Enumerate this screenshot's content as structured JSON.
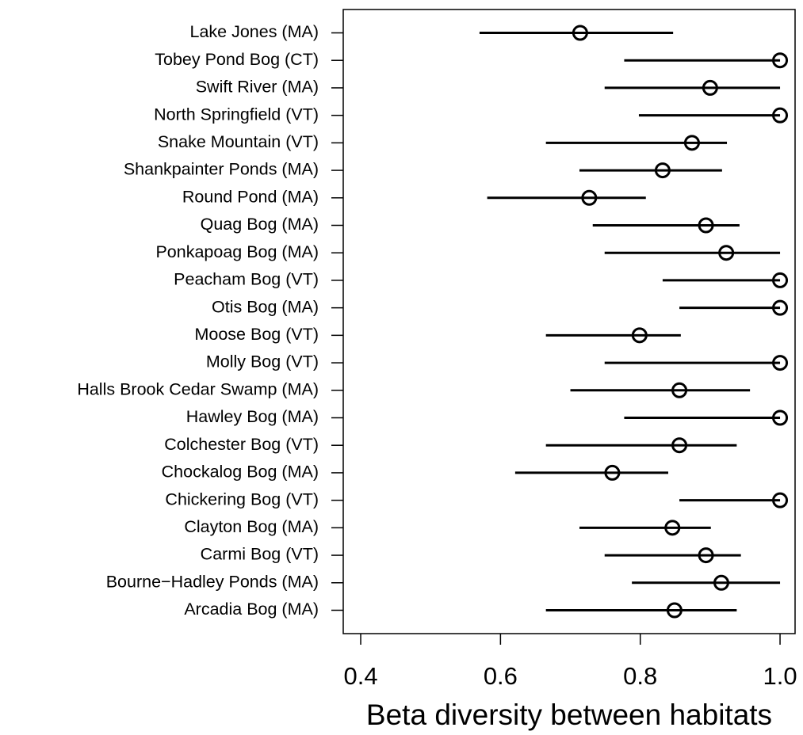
{
  "chart_data": {
    "type": "dotplot",
    "x_label": "Beta diversity between habitats",
    "categories": [
      "Lake Jones (MA)",
      "Tobey Pond Bog (CT)",
      "Swift River (MA)",
      "North Springfield (VT)",
      "Snake Mountain (VT)",
      "Shankpainter Ponds (MA)",
      "Round Pond (MA)",
      "Quag Bog (MA)",
      "Ponkapoag Bog (MA)",
      "Peacham Bog (VT)",
      "Otis Bog (MA)",
      "Moose Bog (VT)",
      "Molly Bog (VT)",
      "Halls Brook Cedar Swamp (MA)",
      "Hawley Bog (MA)",
      "Colchester Bog (VT)",
      "Chockalog Bog (MA)",
      "Chickering Bog (VT)",
      "Clayton Bog (MA)",
      "Carmi Bog (VT)",
      "Bourne−Hadley Ponds (MA)",
      "Arcadia Bog (MA)"
    ],
    "values": [
      0.714,
      1.0,
      0.9,
      1.0,
      0.874,
      0.832,
      0.727,
      0.894,
      0.923,
      1.0,
      1.0,
      0.799,
      1.0,
      0.856,
      1.0,
      0.856,
      0.76,
      1.0,
      0.846,
      0.894,
      0.916,
      0.849
    ],
    "lower": [
      0.57,
      0.777,
      0.749,
      0.798,
      0.665,
      0.713,
      0.581,
      0.732,
      0.749,
      0.832,
      0.856,
      0.665,
      0.749,
      0.7,
      0.777,
      0.665,
      0.621,
      0.856,
      0.713,
      0.749,
      0.788,
      0.665
    ],
    "upper": [
      0.847,
      1.0,
      1.0,
      1.0,
      0.924,
      0.917,
      0.808,
      0.942,
      1.0,
      1.0,
      1.0,
      0.858,
      1.0,
      0.957,
      1.0,
      0.938,
      0.84,
      1.0,
      0.901,
      0.944,
      1.0,
      0.938
    ],
    "color": "#000000",
    "xlim": [
      0.375,
      1.0215
    ],
    "xticks": [
      0.4,
      0.6,
      0.8,
      {
        "value": 1.0,
        "label": "1.0"
      }
    ]
  }
}
